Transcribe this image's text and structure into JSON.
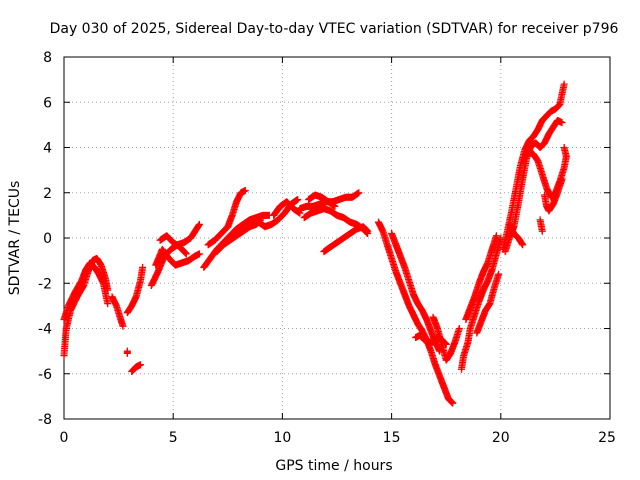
{
  "chart_data": {
    "type": "scatter",
    "title": "Day 030 of 2025, Sidereal Day-to-day VTEC variation (SDTVAR) for receiver p796",
    "xlabel": "GPS time / hours",
    "ylabel": "SDTVAR / TECUs",
    "xlim": [
      0,
      25
    ],
    "ylim": [
      -8,
      8
    ],
    "xticks": [
      "0",
      "5",
      "10",
      "15",
      "20",
      "25"
    ],
    "yticks": [
      "-8",
      "-6",
      "-4",
      "-2",
      "0",
      "2",
      "4",
      "6",
      "8"
    ],
    "grid": true,
    "marker": "+",
    "series": [
      {
        "name": "SDTVAR",
        "color": "#ff0000",
        "tracks": [
          [
            [
              0.0,
              -5.2
            ],
            [
              0.1,
              -4.0
            ],
            [
              0.3,
              -3.2
            ],
            [
              0.6,
              -2.6
            ],
            [
              0.9,
              -2.1
            ],
            [
              1.1,
              -1.5
            ],
            [
              1.3,
              -1.0
            ],
            [
              1.5,
              -0.9
            ],
            [
              1.7,
              -1.2
            ],
            [
              1.9,
              -1.8
            ],
            [
              2.0,
              -2.3
            ]
          ],
          [
            [
              0.0,
              -3.6
            ],
            [
              0.2,
              -3.0
            ],
            [
              0.5,
              -2.4
            ],
            [
              0.8,
              -1.9
            ],
            [
              1.0,
              -1.4
            ],
            [
              1.2,
              -1.1
            ],
            [
              1.4,
              -1.3
            ],
            [
              1.6,
              -1.6
            ],
            [
              1.8,
              -2.0
            ],
            [
              2.0,
              -2.9
            ]
          ],
          [
            [
              2.2,
              -2.6
            ],
            [
              2.4,
              -3.0
            ],
            [
              2.6,
              -3.6
            ],
            [
              2.7,
              -3.9
            ]
          ],
          [
            [
              2.9,
              -3.3
            ],
            [
              3.1,
              -3.0
            ],
            [
              3.3,
              -2.6
            ],
            [
              3.5,
              -1.9
            ],
            [
              3.6,
              -1.3
            ]
          ],
          [
            [
              2.9,
              -5.1
            ],
            [
              2.9,
              -5.0
            ]
          ],
          [
            [
              3.1,
              -5.9
            ],
            [
              3.3,
              -5.7
            ],
            [
              3.5,
              -5.6
            ]
          ],
          [
            [
              4.0,
              -2.1
            ],
            [
              4.3,
              -1.5
            ],
            [
              4.6,
              -0.8
            ],
            [
              4.9,
              -0.5
            ],
            [
              5.2,
              -0.3
            ],
            [
              5.5,
              -0.2
            ],
            [
              5.8,
              0.0
            ],
            [
              6.0,
              0.3
            ],
            [
              6.2,
              0.6
            ]
          ],
          [
            [
              4.2,
              -1.2
            ],
            [
              4.5,
              -0.5
            ],
            [
              4.8,
              -0.9
            ],
            [
              5.1,
              -1.2
            ],
            [
              5.4,
              -1.1
            ],
            [
              5.7,
              -1.0
            ],
            [
              6.0,
              -0.8
            ],
            [
              6.2,
              -0.7
            ]
          ],
          [
            [
              4.4,
              -0.1
            ],
            [
              4.7,
              0.1
            ],
            [
              5.0,
              -0.2
            ],
            [
              5.3,
              -0.4
            ],
            [
              5.6,
              -0.7
            ]
          ],
          [
            [
              6.4,
              -1.3
            ],
            [
              6.7,
              -0.9
            ],
            [
              7.0,
              -0.5
            ],
            [
              7.3,
              -0.2
            ],
            [
              7.6,
              0.1
            ],
            [
              7.9,
              0.4
            ],
            [
              8.2,
              0.6
            ],
            [
              8.5,
              0.8
            ],
            [
              8.8,
              0.9
            ],
            [
              9.1,
              1.0
            ],
            [
              9.4,
              1.0
            ]
          ],
          [
            [
              6.6,
              -0.3
            ],
            [
              6.9,
              -0.1
            ],
            [
              7.2,
              0.2
            ],
            [
              7.5,
              0.5
            ],
            [
              7.7,
              1.0
            ],
            [
              7.9,
              1.6
            ],
            [
              8.1,
              2.0
            ],
            [
              8.3,
              2.1
            ]
          ],
          [
            [
              7.0,
              -0.6
            ],
            [
              7.3,
              -0.3
            ],
            [
              7.6,
              -0.1
            ],
            [
              7.9,
              0.1
            ],
            [
              8.2,
              0.3
            ],
            [
              8.5,
              0.5
            ],
            [
              8.8,
              0.6
            ],
            [
              9.0,
              0.8
            ]
          ],
          [
            [
              8.6,
              0.7
            ],
            [
              8.9,
              0.7
            ],
            [
              9.2,
              0.5
            ],
            [
              9.5,
              0.6
            ],
            [
              9.8,
              0.8
            ],
            [
              10.1,
              1.1
            ],
            [
              10.4,
              1.5
            ],
            [
              10.7,
              1.7
            ]
          ],
          [
            [
              9.6,
              1.0
            ],
            [
              9.9,
              1.4
            ],
            [
              10.2,
              1.6
            ],
            [
              10.5,
              1.3
            ],
            [
              10.8,
              1.1
            ]
          ],
          [
            [
              10.8,
              1.3
            ],
            [
              11.1,
              1.4
            ],
            [
              11.4,
              1.4
            ],
            [
              11.7,
              1.5
            ],
            [
              12.0,
              1.6
            ],
            [
              12.3,
              1.6
            ],
            [
              12.6,
              1.7
            ],
            [
              12.9,
              1.8
            ],
            [
              13.2,
              1.8
            ],
            [
              13.5,
              2.0
            ]
          ],
          [
            [
              11.0,
              0.9
            ],
            [
              11.3,
              1.1
            ],
            [
              11.6,
              1.2
            ],
            [
              11.9,
              1.3
            ],
            [
              12.2,
              1.2
            ],
            [
              12.5,
              1.0
            ],
            [
              12.8,
              0.9
            ],
            [
              13.1,
              0.7
            ],
            [
              13.4,
              0.6
            ],
            [
              13.7,
              0.4
            ],
            [
              13.9,
              0.2
            ]
          ],
          [
            [
              11.2,
              1.7
            ],
            [
              11.5,
              1.9
            ],
            [
              11.8,
              1.8
            ],
            [
              12.1,
              1.6
            ],
            [
              12.4,
              1.4
            ]
          ],
          [
            [
              11.9,
              -0.6
            ],
            [
              12.2,
              -0.4
            ],
            [
              12.5,
              -0.2
            ],
            [
              12.8,
              0.0
            ],
            [
              13.1,
              0.2
            ],
            [
              13.4,
              0.4
            ],
            [
              13.7,
              0.5
            ],
            [
              13.9,
              0.3
            ]
          ],
          [
            [
              14.4,
              0.7
            ],
            [
              14.6,
              0.3
            ],
            [
              14.8,
              -0.3
            ],
            [
              15.0,
              -0.9
            ],
            [
              15.2,
              -1.5
            ],
            [
              15.4,
              -2.0
            ],
            [
              15.6,
              -2.5
            ],
            [
              15.8,
              -3.0
            ],
            [
              16.0,
              -3.4
            ],
            [
              16.2,
              -3.8
            ],
            [
              16.4,
              -4.1
            ],
            [
              16.6,
              -4.5
            ],
            [
              16.8,
              -5.0
            ],
            [
              17.0,
              -5.6
            ],
            [
              17.2,
              -6.1
            ],
            [
              17.4,
              -6.6
            ],
            [
              17.6,
              -7.1
            ],
            [
              17.8,
              -7.3
            ]
          ],
          [
            [
              15.0,
              0.2
            ],
            [
              15.2,
              -0.3
            ],
            [
              15.4,
              -0.8
            ],
            [
              15.6,
              -1.3
            ],
            [
              15.8,
              -1.9
            ],
            [
              16.0,
              -2.5
            ],
            [
              16.2,
              -2.9
            ],
            [
              16.4,
              -3.2
            ],
            [
              16.6,
              -3.6
            ],
            [
              16.8,
              -4.1
            ],
            [
              17.0,
              -4.6
            ],
            [
              17.2,
              -5.0
            ]
          ],
          [
            [
              16.1,
              -4.4
            ],
            [
              16.3,
              -4.3
            ],
            [
              16.5,
              -4.5
            ],
            [
              16.7,
              -4.6
            ],
            [
              16.9,
              -4.6
            ],
            [
              17.1,
              -4.4
            ],
            [
              17.3,
              -4.5
            ],
            [
              17.5,
              -4.7
            ]
          ],
          [
            [
              16.9,
              -3.5
            ],
            [
              17.1,
              -4.0
            ],
            [
              17.3,
              -4.7
            ],
            [
              17.5,
              -5.4
            ],
            [
              17.7,
              -5.1
            ],
            [
              17.9,
              -4.6
            ],
            [
              18.1,
              -4.0
            ]
          ],
          [
            [
              18.2,
              -5.8
            ],
            [
              18.3,
              -5.2
            ],
            [
              18.5,
              -4.6
            ],
            [
              18.6,
              -4.0
            ],
            [
              18.8,
              -3.4
            ],
            [
              19.0,
              -2.8
            ],
            [
              19.2,
              -2.3
            ],
            [
              19.4,
              -1.9
            ],
            [
              19.6,
              -1.4
            ],
            [
              19.8,
              -0.7
            ],
            [
              20.0,
              0.0
            ]
          ],
          [
            [
              18.4,
              -3.6
            ],
            [
              18.6,
              -3.1
            ],
            [
              18.8,
              -2.6
            ],
            [
              19.0,
              -2.0
            ],
            [
              19.2,
              -1.5
            ],
            [
              19.4,
              -1.1
            ],
            [
              19.6,
              -0.5
            ],
            [
              19.8,
              0.1
            ]
          ],
          [
            [
              18.9,
              -4.2
            ],
            [
              19.1,
              -3.7
            ],
            [
              19.3,
              -3.2
            ],
            [
              19.5,
              -2.9
            ],
            [
              19.7,
              -2.2
            ],
            [
              19.9,
              -1.6
            ]
          ],
          [
            [
              20.1,
              -0.5
            ],
            [
              20.3,
              0.3
            ],
            [
              20.5,
              1.2
            ],
            [
              20.7,
              2.2
            ],
            [
              20.9,
              3.2
            ],
            [
              21.1,
              3.9
            ],
            [
              21.3,
              4.3
            ],
            [
              21.5,
              4.5
            ],
            [
              21.7,
              4.8
            ],
            [
              21.9,
              5.2
            ],
            [
              22.1,
              5.4
            ],
            [
              22.3,
              5.6
            ],
            [
              22.5,
              5.7
            ],
            [
              22.7,
              5.9
            ],
            [
              22.9,
              6.8
            ]
          ],
          [
            [
              20.2,
              -0.6
            ],
            [
              20.4,
              0.0
            ],
            [
              20.6,
              0.5
            ],
            [
              20.8,
              1.5
            ],
            [
              21.0,
              2.6
            ],
            [
              21.2,
              3.6
            ],
            [
              21.4,
              4.1
            ],
            [
              21.6,
              4.2
            ],
            [
              21.8,
              4.0
            ],
            [
              22.0,
              4.2
            ],
            [
              22.2,
              4.6
            ],
            [
              22.4,
              4.9
            ],
            [
              22.6,
              5.2
            ],
            [
              22.8,
              5.1
            ]
          ],
          [
            [
              20.4,
              0.6
            ],
            [
              20.6,
              0.2
            ],
            [
              20.8,
              0.0
            ],
            [
              21.0,
              -0.3
            ]
          ],
          [
            [
              21.2,
              3.8
            ],
            [
              21.5,
              3.7
            ],
            [
              21.7,
              3.4
            ],
            [
              21.9,
              2.8
            ],
            [
              22.1,
              2.2
            ],
            [
              22.3,
              1.8
            ],
            [
              22.5,
              2.0
            ],
            [
              22.7,
              2.5
            ],
            [
              22.9,
              3.1
            ],
            [
              23.0,
              3.6
            ],
            [
              22.9,
              4.0
            ]
          ],
          [
            [
              22.0,
              1.9
            ],
            [
              22.1,
              1.4
            ],
            [
              22.2,
              1.2
            ],
            [
              22.4,
              1.5
            ],
            [
              22.6,
              2.0
            ],
            [
              22.8,
              2.6
            ]
          ],
          [
            [
              21.8,
              0.8
            ],
            [
              21.9,
              0.3
            ]
          ]
        ]
      }
    ]
  }
}
